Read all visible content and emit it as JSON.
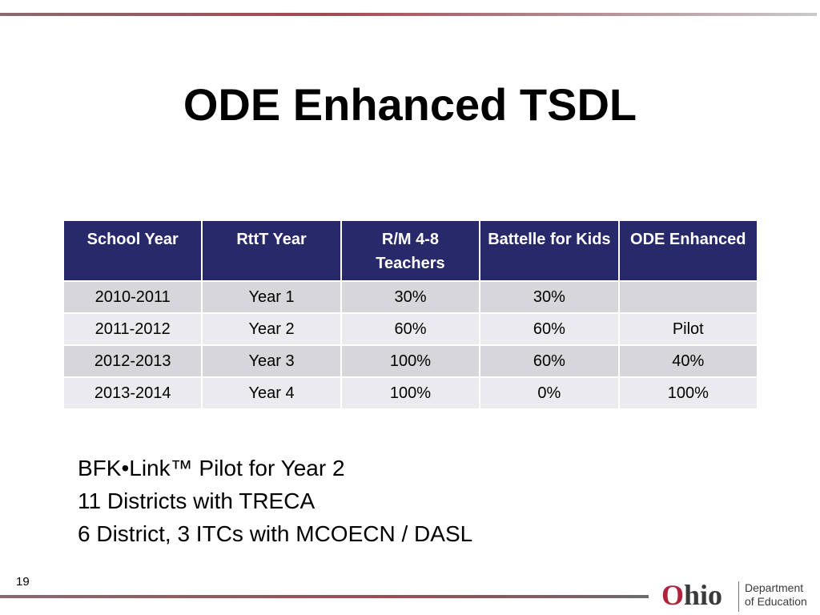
{
  "header": {
    "title": "ODE Enhanced TSDL"
  },
  "table": {
    "columns": [
      "School Year",
      "RttT Year",
      "R/M 4-8 Teachers",
      "Battelle for Kids",
      "ODE Enhanced"
    ],
    "rows": [
      [
        "2010-2011",
        "Year 1",
        "30%",
        "30%",
        null
      ],
      [
        "2011-2012",
        "Year 2",
        "60%",
        "60%",
        "Pilot"
      ],
      [
        "2012-2013",
        "Year 3",
        "100%",
        "60%",
        "40%"
      ],
      [
        "2013-2014",
        "Year 4",
        "100%",
        "0%",
        "100%"
      ]
    ]
  },
  "notes": [
    "BFK•Link™ Pilot for Year 2",
    "11 Districts with TRECA",
    "6 District, 3 ITCs with MCOECN / DASL"
  ],
  "footer": {
    "page_number": "19",
    "logo": {
      "name": "Ohio",
      "line1": "Department",
      "line2": "of Education"
    }
  }
}
